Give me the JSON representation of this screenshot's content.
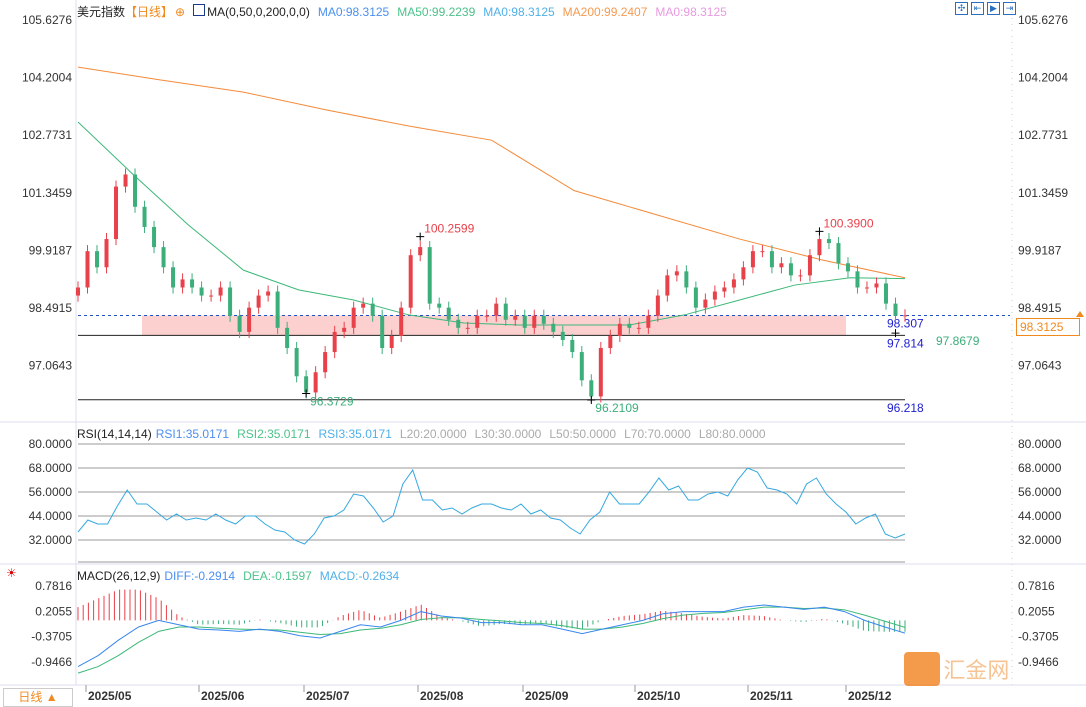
{
  "header": {
    "title": "美元指数",
    "period": "【日线】",
    "ma_label": "MA(0,50,0,200,0,0)",
    "ma_values": [
      {
        "text": "MA0:98.3125",
        "color": "#4a8ff0"
      },
      {
        "text": "MA50:99.2239",
        "color": "#4cc28a"
      },
      {
        "text": "MA0:98.3125",
        "color": "#4fb0e8"
      },
      {
        "text": "MA200:99.2407",
        "color": "#f59a50"
      },
      {
        "text": "MA0:98.3125",
        "color": "#e89ae0"
      }
    ]
  },
  "rsi_header": {
    "label": "RSI(14,14,14)",
    "values": [
      {
        "text": "RSI1:35.0171",
        "color": "#4a8ff0"
      },
      {
        "text": "RSI2:35.0171",
        "color": "#4cc28a"
      },
      {
        "text": "RSI3:35.0171",
        "color": "#4fb0e8"
      },
      {
        "text": "L20:20.0000",
        "color": "#aaa"
      },
      {
        "text": "L30:30.0000",
        "color": "#aaa"
      },
      {
        "text": "L50:50.0000",
        "color": "#aaa"
      },
      {
        "text": "L70:70.0000",
        "color": "#aaa"
      },
      {
        "text": "L80:80.0000",
        "color": "#aaa"
      }
    ]
  },
  "macd_header": {
    "label": "MACD(26,12,9)",
    "values": [
      {
        "text": "DIFF:-0.2914",
        "color": "#4a8ff0"
      },
      {
        "text": "DEA:-0.1597",
        "color": "#4cc28a"
      },
      {
        "text": "MACD:-0.2634",
        "color": "#4fb0e8"
      }
    ]
  },
  "period_button": "日线 ▲",
  "current_price": "98.3125",
  "watermark": "汇金网",
  "colors": {
    "up": "#e8414a",
    "down": "#3cae7a",
    "ma50": "#3cb878",
    "ma200": "#f58a3a",
    "rsi": "#35a8e0",
    "diff": "#3a86f0",
    "dea": "#3cb878",
    "zone": "#fdd0d0"
  },
  "chart_data": {
    "type": "candlestick",
    "price_axis": {
      "ticks": [
        "105.6276",
        "104.2004",
        "102.7731",
        "101.3459",
        "99.9187",
        "98.4915",
        "97.0643"
      ],
      "range": [
        95.9,
        105.6276
      ]
    },
    "x_ticks": [
      "2025/05",
      "2025/06",
      "2025/07",
      "2025/08",
      "2025/09",
      "2025/10",
      "2025/11",
      "2025/12"
    ],
    "closes": [
      99.0,
      99.9,
      99.5,
      100.2,
      101.5,
      101.8,
      101.0,
      100.5,
      100.0,
      99.5,
      99.0,
      99.2,
      99.0,
      98.8,
      98.8,
      99.0,
      98.3,
      97.9,
      98.5,
      98.8,
      98.9,
      98.0,
      97.5,
      96.8,
      96.4,
      96.9,
      97.4,
      97.9,
      98.0,
      98.5,
      98.6,
      98.3,
      97.5,
      97.8,
      98.5,
      99.8,
      100.0,
      98.6,
      98.5,
      98.2,
      98.0,
      98.0,
      98.3,
      98.3,
      98.6,
      98.2,
      98.3,
      98.0,
      98.3,
      98.1,
      97.9,
      97.7,
      97.4,
      96.7,
      96.3,
      97.5,
      97.8,
      98.1,
      98.0,
      98.0,
      98.3,
      98.8,
      99.3,
      99.4,
      99.0,
      98.5,
      98.7,
      98.9,
      99.0,
      99.2,
      99.5,
      99.9,
      99.9,
      99.5,
      99.6,
      99.3,
      99.3,
      99.8,
      100.2,
      100.1,
      99.6,
      99.4,
      99.0,
      99.0,
      99.1,
      98.6,
      98.3,
      98.31
    ],
    "ma50": [
      103.1,
      101.8,
      100.55,
      99.43,
      98.94,
      98.69,
      98.32,
      98.12,
      98.07,
      98.07,
      98.07,
      98.32,
      98.69,
      99.06,
      99.24,
      99.22
    ],
    "ma200": [
      104.46,
      104.14,
      103.84,
      103.4,
      103.0,
      102.65,
      101.4,
      100.8,
      100.2,
      99.68,
      99.24
    ],
    "annotations": [
      {
        "text": "100.2599",
        "kind": "high",
        "price": 100.2599,
        "index": 36
      },
      {
        "text": "100.3900",
        "kind": "high",
        "price": 100.39,
        "index": 78
      },
      {
        "text": "96.3729",
        "kind": "low",
        "price": 96.3729,
        "index": 24
      },
      {
        "text": "96.2109",
        "kind": "low",
        "price": 96.2109,
        "index": 54
      },
      {
        "text": "97.8679",
        "kind": "low",
        "price": 97.8679,
        "index": 86
      }
    ],
    "levels": [
      {
        "text": "98.307",
        "price": 98.307
      },
      {
        "text": "97.814",
        "price": 97.814
      },
      {
        "text": "96.218",
        "price": 96.218
      }
    ],
    "zone": [
      97.814,
      98.307
    ],
    "rsi": {
      "ticks": [
        "80.0000",
        "68.0000",
        "56.0000",
        "44.0000",
        "32.0000"
      ],
      "gridlines": [
        80,
        68,
        56,
        44,
        32
      ],
      "values": [
        36,
        42,
        40,
        40,
        49,
        57,
        50,
        50,
        46,
        42,
        45,
        42,
        43,
        42,
        45,
        42,
        40,
        44,
        44,
        40,
        37,
        36,
        32,
        30,
        35,
        43,
        44,
        47,
        55,
        54,
        48,
        41,
        44,
        60,
        67,
        52,
        52,
        47,
        48,
        45,
        48,
        50,
        50,
        48,
        47,
        50,
        45,
        47,
        43,
        42,
        38,
        35,
        42,
        46,
        56,
        50,
        50,
        50,
        56,
        63,
        57,
        59,
        52,
        52,
        55,
        56,
        54,
        62,
        68,
        66,
        58,
        57,
        55,
        50,
        60,
        63,
        55,
        50,
        46,
        40,
        43,
        45,
        35,
        33,
        35
      ]
    },
    "macd": {
      "ticks": [
        "0.7816",
        "0.2055",
        "-0.3705",
        "-0.9466"
      ],
      "diff": [
        -1.05,
        -0.8,
        -0.45,
        -0.15,
        0.0,
        -0.1,
        -0.2,
        -0.22,
        -0.25,
        -0.2,
        -0.25,
        -0.35,
        -0.4,
        -0.25,
        -0.1,
        -0.15,
        0.0,
        0.2,
        0.1,
        0.05,
        -0.05,
        -0.05,
        -0.1,
        -0.1,
        -0.2,
        -0.3,
        -0.2,
        -0.1,
        0.0,
        0.15,
        0.2,
        0.2,
        0.2,
        0.3,
        0.35,
        0.3,
        0.25,
        0.3,
        0.2,
        0.0,
        -0.15,
        -0.29
      ],
      "dea": [
        -1.2,
        -1.05,
        -0.8,
        -0.5,
        -0.25,
        -0.15,
        -0.15,
        -0.18,
        -0.2,
        -0.21,
        -0.22,
        -0.27,
        -0.32,
        -0.3,
        -0.22,
        -0.18,
        -0.1,
        0.02,
        0.06,
        0.06,
        0.02,
        -0.01,
        -0.05,
        -0.07,
        -0.12,
        -0.2,
        -0.2,
        -0.15,
        -0.07,
        0.04,
        0.12,
        0.16,
        0.18,
        0.24,
        0.3,
        0.3,
        0.27,
        0.28,
        0.24,
        0.12,
        -0.02,
        -0.16
      ]
    }
  }
}
